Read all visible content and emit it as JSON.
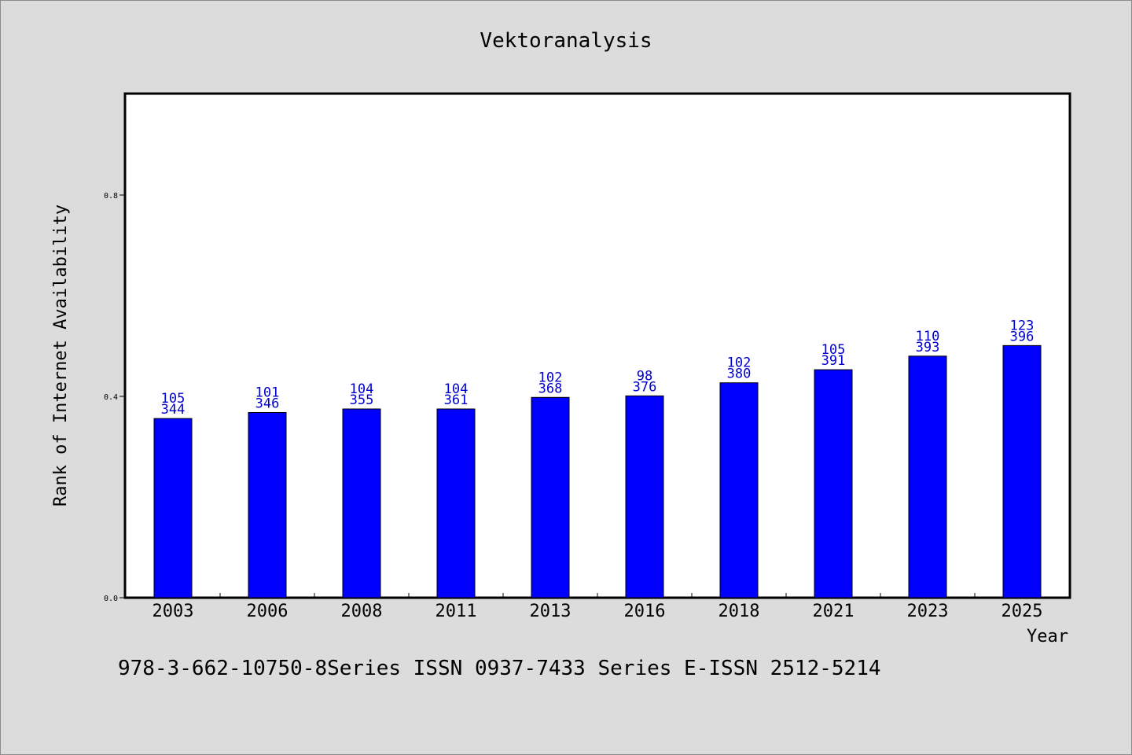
{
  "chart_data": {
    "type": "bar",
    "title": "Vektoranalysis",
    "xlabel": "Year",
    "ylabel": "Rank of Internet Availability",
    "categories": [
      "2003",
      "2006",
      "2008",
      "2011",
      "2013",
      "2016",
      "2018",
      "2021",
      "2023",
      "2025"
    ],
    "values": [
      0.356,
      0.368,
      0.375,
      0.375,
      0.398,
      0.401,
      0.427,
      0.453,
      0.48,
      0.501
    ],
    "label_top": [
      "105",
      "101",
      "104",
      "104",
      "102",
      "98",
      "102",
      "105",
      "110",
      "123"
    ],
    "label_bottom": [
      "344",
      "346",
      "355",
      "361",
      "368",
      "376",
      "380",
      "391",
      "393",
      "396"
    ],
    "yticks": [
      "0.0",
      "0.4",
      "0.8"
    ],
    "ylim": [
      0,
      1.0
    ],
    "grid": false,
    "bar_color": "#0000ff",
    "label_color": "#0000cc"
  },
  "footer": {
    "text": "978-3-662-10750-8Series ISSN 0937-7433 Series E-ISSN 2512-5214"
  }
}
